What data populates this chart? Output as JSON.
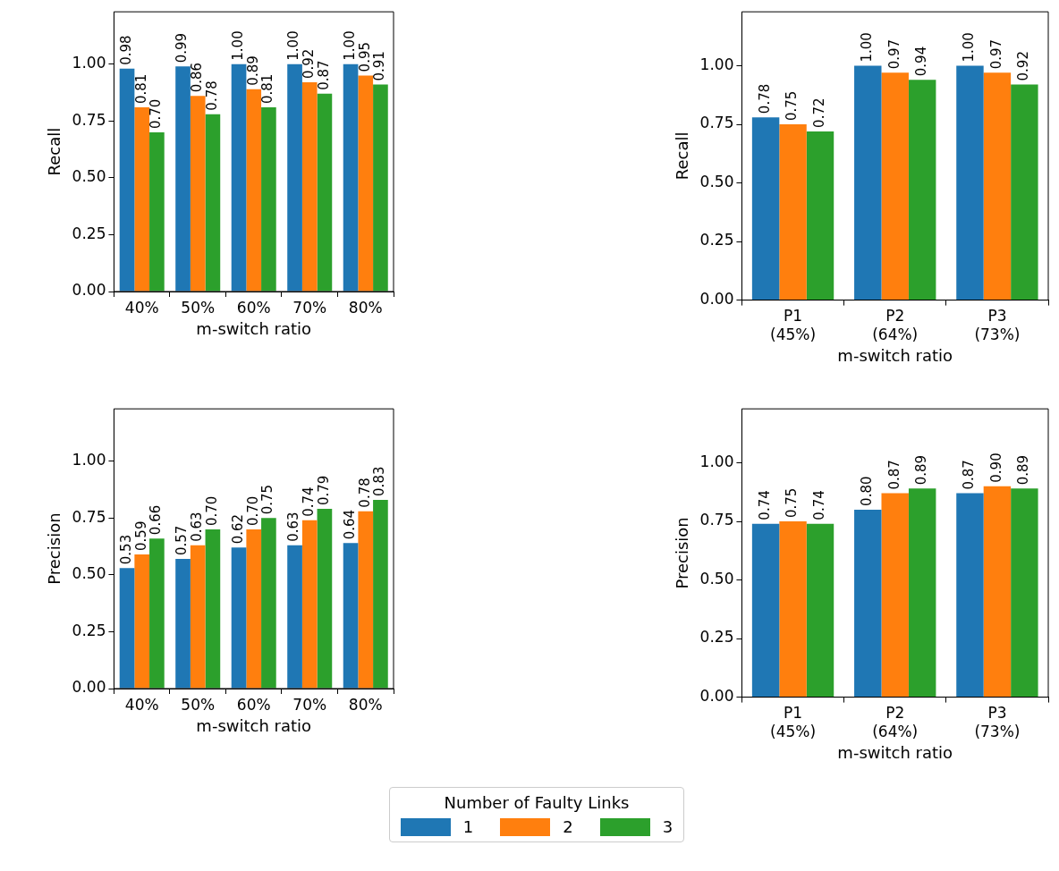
{
  "chart_data": [
    {
      "type": "bar",
      "xlabel": "m-switch ratio",
      "ylabel": "Recall",
      "categories": [
        "40%",
        "50%",
        "60%",
        "70%",
        "80%"
      ],
      "legend": "bottom",
      "legend_title": "Number of Faulty Links",
      "ylim": [
        0,
        1.23
      ],
      "yticks": [
        {
          "value": 0,
          "label": "0.00"
        },
        {
          "value": 0.25,
          "label": "0.25"
        },
        {
          "value": 0.5,
          "label": "0.50"
        },
        {
          "value": 0.75,
          "label": "0.75"
        },
        {
          "value": 1,
          "label": "1.00"
        }
      ],
      "grid": false,
      "series": [
        {
          "name": "1",
          "color": "#1f77b4",
          "values": [
            0.98,
            0.99,
            1.0,
            1.0,
            1.0
          ],
          "value_labels": [
            "0.98",
            "0.99",
            "1.00",
            "1.00",
            "1.00"
          ]
        },
        {
          "name": "2",
          "color": "#ff7f0e",
          "values": [
            0.81,
            0.86,
            0.89,
            0.92,
            0.95
          ],
          "value_labels": [
            "0.81",
            "0.86",
            "0.89",
            "0.92",
            "0.95"
          ]
        },
        {
          "name": "3",
          "color": "#2ca02c",
          "values": [
            0.7,
            0.78,
            0.81,
            0.87,
            0.91
          ],
          "value_labels": [
            "0.70",
            "0.78",
            "0.81",
            "0.87",
            "0.91"
          ]
        }
      ]
    },
    {
      "type": "bar",
      "xlabel": "m-switch ratio",
      "ylabel": "Recall",
      "categories": [
        "P1\n(45%)",
        "P2\n(64%)",
        "P3\n(73%)"
      ],
      "ylim": [
        0,
        1.23
      ],
      "yticks": [
        {
          "value": 0,
          "label": "0.00"
        },
        {
          "value": 0.25,
          "label": "0.25"
        },
        {
          "value": 0.5,
          "label": "0.50"
        },
        {
          "value": 0.75,
          "label": "0.75"
        },
        {
          "value": 1,
          "label": "1.00"
        }
      ],
      "grid": false,
      "series": [
        {
          "name": "1",
          "color": "#1f77b4",
          "values": [
            0.78,
            1.0,
            1.0
          ],
          "value_labels": [
            "0.78",
            "1.00",
            "1.00"
          ]
        },
        {
          "name": "2",
          "color": "#ff7f0e",
          "values": [
            0.75,
            0.97,
            0.97
          ],
          "value_labels": [
            "0.75",
            "0.97",
            "0.97"
          ]
        },
        {
          "name": "3",
          "color": "#2ca02c",
          "values": [
            0.72,
            0.94,
            0.92
          ],
          "value_labels": [
            "0.72",
            "0.94",
            "0.92"
          ]
        }
      ]
    },
    {
      "type": "bar",
      "xlabel": "m-switch ratio",
      "ylabel": "Precision",
      "categories": [
        "40%",
        "50%",
        "60%",
        "70%",
        "80%"
      ],
      "ylim": [
        0,
        1.23
      ],
      "yticks": [
        {
          "value": 0,
          "label": "0.00"
        },
        {
          "value": 0.25,
          "label": "0.25"
        },
        {
          "value": 0.5,
          "label": "0.50"
        },
        {
          "value": 0.75,
          "label": "0.75"
        },
        {
          "value": 1,
          "label": "1.00"
        }
      ],
      "grid": false,
      "series": [
        {
          "name": "1",
          "color": "#1f77b4",
          "values": [
            0.53,
            0.57,
            0.62,
            0.63,
            0.64
          ],
          "value_labels": [
            "0.53",
            "0.57",
            "0.62",
            "0.63",
            "0.64"
          ]
        },
        {
          "name": "2",
          "color": "#ff7f0e",
          "values": [
            0.59,
            0.63,
            0.7,
            0.74,
            0.78
          ],
          "value_labels": [
            "0.59",
            "0.63",
            "0.70",
            "0.74",
            "0.78"
          ]
        },
        {
          "name": "3",
          "color": "#2ca02c",
          "values": [
            0.66,
            0.7,
            0.75,
            0.79,
            0.83
          ],
          "value_labels": [
            "0.66",
            "0.70",
            "0.75",
            "0.79",
            "0.83"
          ]
        }
      ]
    },
    {
      "type": "bar",
      "xlabel": "m-switch ratio",
      "ylabel": "Precision",
      "categories": [
        "P1\n(45%)",
        "P2\n(64%)",
        "P3\n(73%)"
      ],
      "ylim": [
        0,
        1.23
      ],
      "yticks": [
        {
          "value": 0,
          "label": "0.00"
        },
        {
          "value": 0.25,
          "label": "0.25"
        },
        {
          "value": 0.5,
          "label": "0.50"
        },
        {
          "value": 0.75,
          "label": "0.75"
        },
        {
          "value": 1,
          "label": "1.00"
        }
      ],
      "grid": false,
      "series": [
        {
          "name": "1",
          "color": "#1f77b4",
          "values": [
            0.74,
            0.8,
            0.87
          ],
          "value_labels": [
            "0.74",
            "0.80",
            "0.87"
          ]
        },
        {
          "name": "2",
          "color": "#ff7f0e",
          "values": [
            0.75,
            0.87,
            0.9
          ],
          "value_labels": [
            "0.75",
            "0.87",
            "0.90"
          ]
        },
        {
          "name": "3",
          "color": "#2ca02c",
          "values": [
            0.74,
            0.89,
            0.89
          ],
          "value_labels": [
            "0.74",
            "0.89",
            "0.89"
          ]
        }
      ]
    }
  ]
}
